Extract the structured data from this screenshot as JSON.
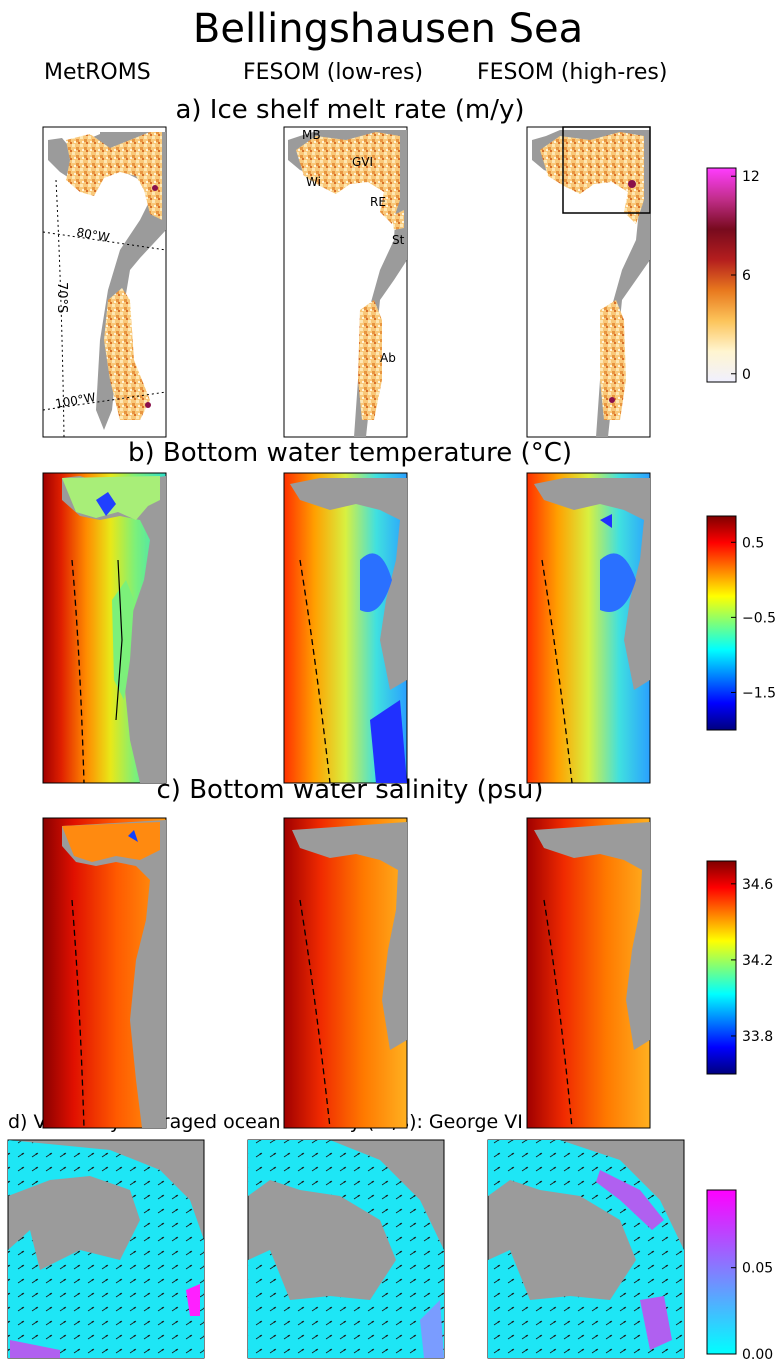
{
  "title": "Bellingshausen Sea",
  "column_headers": [
    "MetROMS",
    "FESOM (low-res)",
    "FESOM (high-res)"
  ],
  "chart_data": [
    {
      "type": "heatmap",
      "panel": "a",
      "title": "a) Ice shelf melt rate (m/y)",
      "columns": [
        "MetROMS",
        "FESOM (low-res)",
        "FESOM (high-res)"
      ],
      "colorbar": {
        "ticks": [
          "12",
          "6",
          "0"
        ],
        "values": [
          12,
          6,
          0
        ],
        "range": [
          -0.5,
          12.5
        ],
        "colors": [
          "#f0f0ff",
          "#fff5d0",
          "#fcc45a",
          "#e8781e",
          "#b41e1e",
          "#780a1e",
          "#c22e8c",
          "#ff3cff"
        ]
      },
      "shelf_labels": [
        "MB",
        "GVI",
        "Wi",
        "RE",
        "St",
        "Ab"
      ],
      "graticule_labels": [
        "80°W",
        "70°S",
        "100°W"
      ]
    },
    {
      "type": "heatmap",
      "panel": "b",
      "title": "b) Bottom water temperature (°C)",
      "columns": [
        "MetROMS",
        "FESOM (low-res)",
        "FESOM (high-res)"
      ],
      "colorbar": {
        "ticks": [
          "0.5",
          "−0.5",
          "−1.5"
        ],
        "values": [
          0.5,
          -0.5,
          -1.5
        ],
        "range": [
          -2.0,
          0.85
        ],
        "colors": [
          "#00007f",
          "#0000ff",
          "#0080ff",
          "#00ffff",
          "#7dff7a",
          "#ffff00",
          "#ff8000",
          "#ff0000",
          "#7f0000"
        ]
      }
    },
    {
      "type": "heatmap",
      "panel": "c",
      "title": "c) Bottom water salinity (psu)",
      "columns": [
        "MetROMS",
        "FESOM (low-res)",
        "FESOM (high-res)"
      ],
      "colorbar": {
        "ticks": [
          "34.6",
          "34.2",
          "33.8"
        ],
        "values": [
          34.6,
          34.2,
          33.8
        ],
        "range": [
          33.6,
          34.72
        ],
        "colors": [
          "#00007f",
          "#0000ff",
          "#0080ff",
          "#00ffff",
          "#7dff7a",
          "#ffff00",
          "#ff8000",
          "#ff0000",
          "#7f0000"
        ]
      }
    },
    {
      "type": "heatmap",
      "panel": "d",
      "title": "d) Vertically averaged ocean velocity (m/s): George VI Ice Shelf",
      "columns": [
        "MetROMS",
        "FESOM (low-res)",
        "FESOM (high-res)"
      ],
      "colorbar": {
        "ticks": [
          "0.05",
          "0.00"
        ],
        "values": [
          0.05,
          0.0
        ],
        "range": [
          0.0,
          0.095
        ],
        "colors": [
          "#00ffff",
          "#8080ff",
          "#ff00ff"
        ]
      }
    }
  ]
}
